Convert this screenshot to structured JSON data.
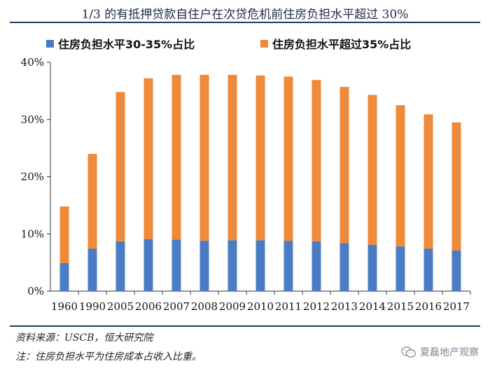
{
  "chart_data": {
    "type": "bar",
    "stacked": true,
    "title": "1/3 的有抵押贷款自住户在次贷危机前住房负担水平超过 30%",
    "categories": [
      "1960",
      "1990",
      "2005",
      "2006",
      "2007",
      "2008",
      "2009",
      "2010",
      "2011",
      "2012",
      "2013",
      "2014",
      "2015",
      "2016",
      "2017"
    ],
    "series": [
      {
        "name": "住房负担水平30-35%占比",
        "color": "#4a7cc4",
        "values": [
          4.9,
          7.4,
          8.7,
          9.1,
          9.0,
          8.8,
          8.9,
          8.9,
          8.8,
          8.7,
          8.4,
          8.1,
          7.8,
          7.4,
          7.1
        ]
      },
      {
        "name": "住房负担水平超过35%占比",
        "color": "#ee8a3a",
        "values": [
          9.9,
          16.6,
          26.1,
          28.1,
          28.8,
          29.0,
          28.9,
          28.8,
          28.7,
          28.2,
          27.3,
          26.2,
          24.7,
          23.5,
          22.4
        ]
      }
    ],
    "ylim": [
      0,
      40
    ],
    "yticks": [
      "0%",
      "10%",
      "20%",
      "30%",
      "40%"
    ],
    "xlabel": "",
    "ylabel": "",
    "legend_position": "top",
    "grid": false
  },
  "footnotes": {
    "source": "资料来源：USCB，恒大研究院",
    "note": "注：住房负担水平为住房成本占收入比重。"
  },
  "watermark": {
    "text": "夏磊地产观察",
    "icon": "wechat-icon"
  }
}
